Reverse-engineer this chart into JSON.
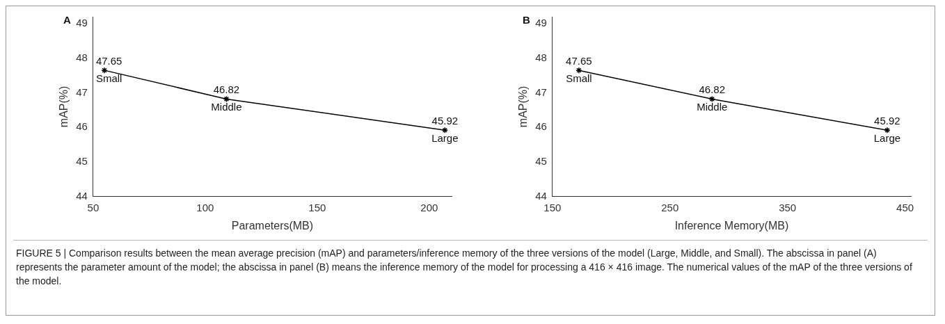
{
  "chart_data": [
    {
      "type": "line",
      "title": "A",
      "xlabel": "Parameters(MB)",
      "ylabel": "mAP(%)",
      "x": [
        55,
        109.5,
        207
      ],
      "series": [
        {
          "color": "#000000",
          "values": [
            47.65,
            46.82,
            45.92
          ]
        }
      ],
      "data_labels": true,
      "marker": "cross",
      "grid": false,
      "legend": false,
      "xlim": [
        50,
        210
      ],
      "xticks": [
        50,
        100,
        150,
        200
      ],
      "ylim": [
        44,
        49.2
      ],
      "yticks": [
        44,
        45,
        46,
        47,
        48,
        49
      ],
      "annotations": [
        {
          "text": "Small",
          "x": 55,
          "y": 47.65
        },
        {
          "text": "Middle",
          "x": 109.5,
          "y": 46.82
        },
        {
          "text": "Large",
          "x": 207,
          "y": 45.92
        }
      ]
    },
    {
      "type": "line",
      "title": "B",
      "xlabel": "Inference Memory(MB)",
      "ylabel": "mAP(%)",
      "x": [
        172.5,
        285.8,
        434.8
      ],
      "series": [
        {
          "color": "#000000",
          "values": [
            47.65,
            46.82,
            45.92
          ]
        }
      ],
      "data_labels": true,
      "marker": "cross",
      "grid": false,
      "legend": false,
      "xlim": [
        150,
        455
      ],
      "xticks": [
        150,
        250,
        350,
        450
      ],
      "ylim": [
        44,
        49.2
      ],
      "yticks": [
        44,
        45,
        46,
        47,
        48,
        49
      ],
      "annotations": [
        {
          "text": "Small",
          "x": 172.5,
          "y": 47.65
        },
        {
          "text": "Middle",
          "x": 285.8,
          "y": 46.82
        },
        {
          "text": "Large",
          "x": 434.8,
          "y": 45.92
        },
        "FIGURE 5 | Comparison results between the mean average precision (mAP) and parameters/inference memory of the three versions of the model (Large, Middle, and Small). The abscissa in panel (A) represents the parameter amount of the model; the abscissa in panel (B) means the inference memory of the model for processing a 416 × 416 image. The numerical values of the mAP of the three versions of the model."
      ]
    }
  ]
}
